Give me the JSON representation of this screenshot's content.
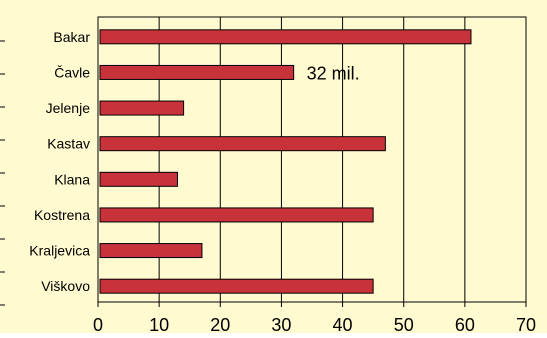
{
  "chart_data": {
    "type": "bar",
    "orientation": "horizontal",
    "categories": [
      "Bakar",
      "Čavle",
      "Jelenje",
      "Kastav",
      "Klana",
      "Kostrena",
      "Kraljevica",
      "Viškovo"
    ],
    "values": [
      61,
      32,
      14,
      47,
      13,
      45,
      17,
      45
    ],
    "annotations": [
      {
        "category": "Čavle",
        "text": "32 mil."
      }
    ],
    "x_ticks": [
      "0",
      "10",
      "20",
      "30",
      "40",
      "50",
      "60",
      "70"
    ],
    "xlim": [
      0,
      70
    ],
    "grid": true,
    "bar_color": "#c8323a",
    "plot_background": "#fffad0"
  }
}
